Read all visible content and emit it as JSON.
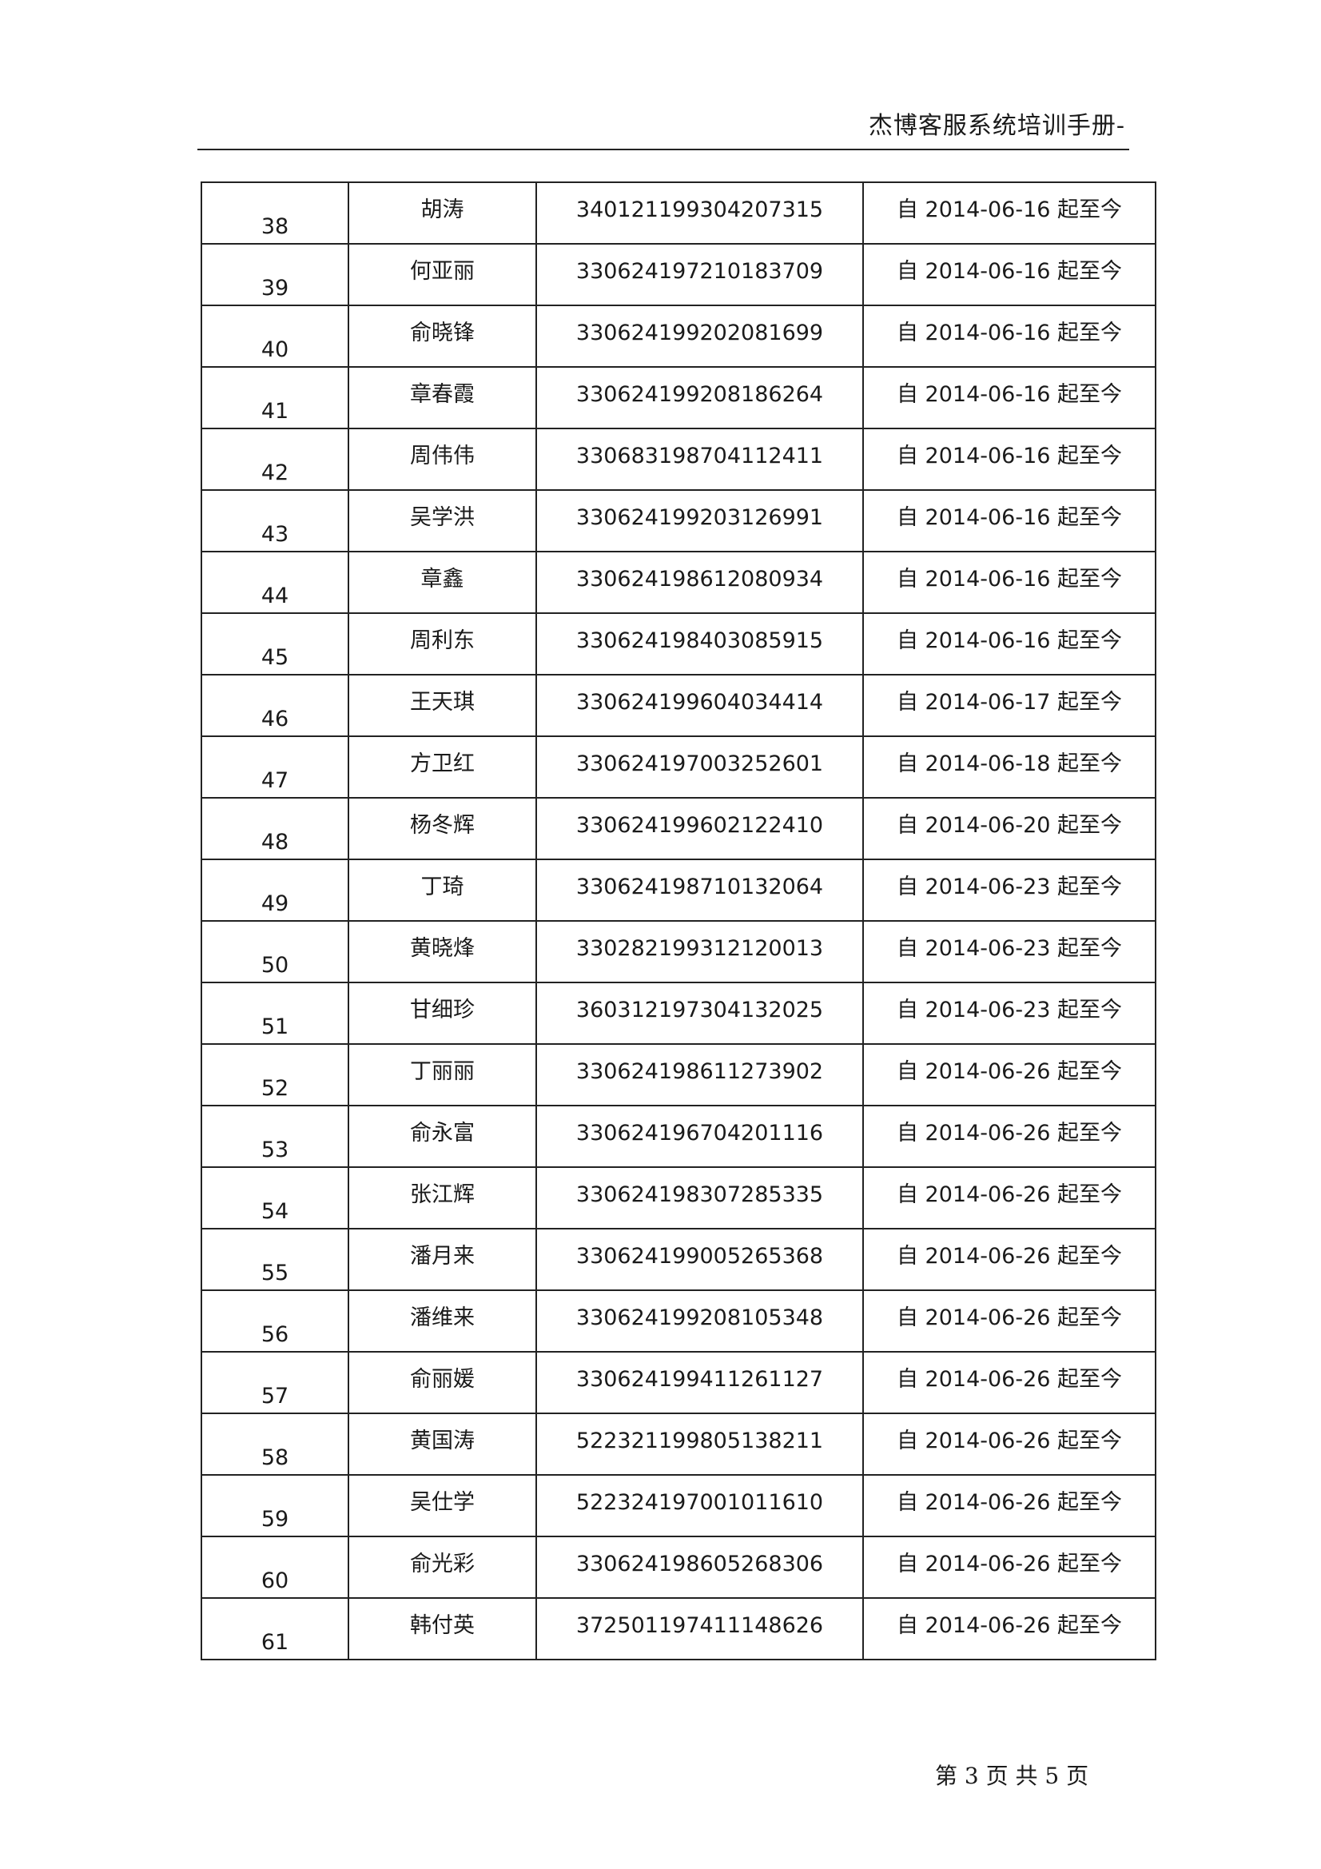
{
  "header": {
    "title": "杰博客服系统培训手册-"
  },
  "table": {
    "rows": [
      {
        "no": "38",
        "name": "胡涛",
        "id": "340121199304207315",
        "period": "自 2014-06-16 起至今"
      },
      {
        "no": "39",
        "name": "何亚丽",
        "id": "330624197210183709",
        "period": "自 2014-06-16 起至今"
      },
      {
        "no": "40",
        "name": "俞晓锋",
        "id": "330624199202081699",
        "period": "自 2014-06-16 起至今"
      },
      {
        "no": "41",
        "name": "章春霞",
        "id": "330624199208186264",
        "period": "自 2014-06-16 起至今"
      },
      {
        "no": "42",
        "name": "周伟伟",
        "id": "330683198704112411",
        "period": "自 2014-06-16 起至今"
      },
      {
        "no": "43",
        "name": "吴学洪",
        "id": "330624199203126991",
        "period": "自 2014-06-16 起至今"
      },
      {
        "no": "44",
        "name": "章鑫",
        "id": "330624198612080934",
        "period": "自 2014-06-16 起至今"
      },
      {
        "no": "45",
        "name": "周利东",
        "id": "330624198403085915",
        "period": "自 2014-06-16 起至今"
      },
      {
        "no": "46",
        "name": "王天琪",
        "id": "330624199604034414",
        "period": "自 2014-06-17 起至今"
      },
      {
        "no": "47",
        "name": "方卫红",
        "id": "330624197003252601",
        "period": "自 2014-06-18 起至今"
      },
      {
        "no": "48",
        "name": "杨冬辉",
        "id": "330624199602122410",
        "period": "自 2014-06-20 起至今"
      },
      {
        "no": "49",
        "name": "丁琦",
        "id": "330624198710132064",
        "period": "自 2014-06-23 起至今"
      },
      {
        "no": "50",
        "name": "黄晓烽",
        "id": "330282199312120013",
        "period": "自 2014-06-23 起至今"
      },
      {
        "no": "51",
        "name": "甘细珍",
        "id": "360312197304132025",
        "period": "自 2014-06-23 起至今"
      },
      {
        "no": "52",
        "name": "丁丽丽",
        "id": "330624198611273902",
        "period": "自 2014-06-26 起至今"
      },
      {
        "no": "53",
        "name": "俞永富",
        "id": "330624196704201116",
        "period": "自 2014-06-26 起至今"
      },
      {
        "no": "54",
        "name": "张江辉",
        "id": "330624198307285335",
        "period": "自 2014-06-26 起至今"
      },
      {
        "no": "55",
        "name": "潘月来",
        "id": "330624199005265368",
        "period": "自 2014-06-26 起至今"
      },
      {
        "no": "56",
        "name": "潘维来",
        "id": "330624199208105348",
        "period": "自 2014-06-26 起至今"
      },
      {
        "no": "57",
        "name": "俞丽媛",
        "id": "330624199411261127",
        "period": "自 2014-06-26 起至今"
      },
      {
        "no": "58",
        "name": "黄国涛",
        "id": "522321199805138211",
        "period": "自 2014-06-26 起至今"
      },
      {
        "no": "59",
        "name": "吴仕学",
        "id": "522324197001011610",
        "period": "自 2014-06-26 起至今"
      },
      {
        "no": "60",
        "name": "俞光彩",
        "id": "330624198605268306",
        "period": "自 2014-06-26 起至今"
      },
      {
        "no": "61",
        "name": "韩付英",
        "id": "372501197411148626",
        "period": "自 2014-06-26 起至今"
      }
    ]
  },
  "footer": {
    "page_text": "第 3 页  共 5 页"
  }
}
